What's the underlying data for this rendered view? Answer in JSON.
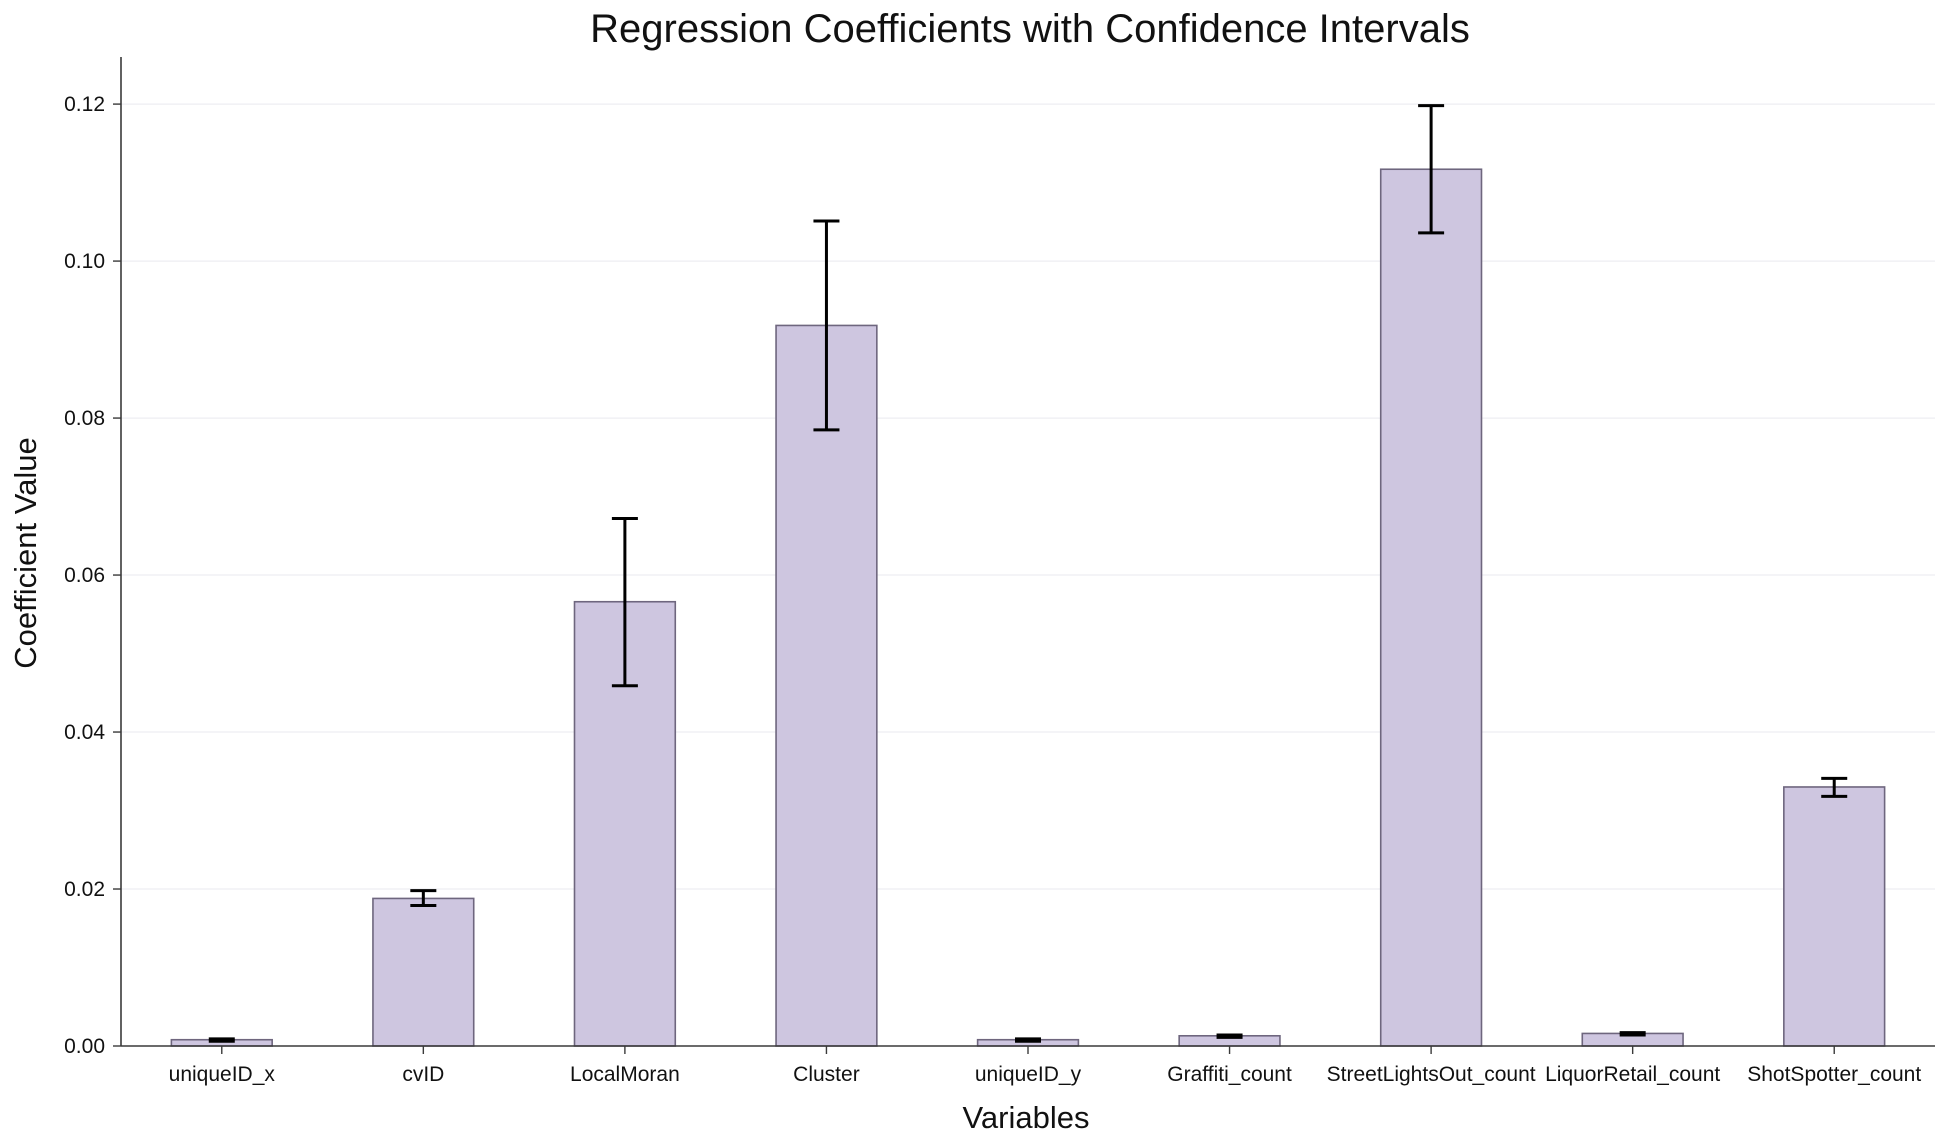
{
  "chart_data": {
    "type": "bar",
    "title": "Regression Coefficients with Confidence Intervals",
    "xlabel": "Variables",
    "ylabel": "Coefficient Value",
    "categories": [
      "uniqueID_x",
      "cvID",
      "LocalMoran",
      "Cluster",
      "uniqueID_y",
      "Graffiti_count",
      "StreetLightsOut_count",
      "LiquorRetail_count",
      "ShotSpotter_count"
    ],
    "values": [
      0.0008,
      0.0188,
      0.0566,
      0.0918,
      0.0008,
      0.0013,
      0.1117,
      0.0016,
      0.033
    ],
    "error_low": [
      0.0006,
      0.0179,
      0.0459,
      0.0785,
      0.0006,
      0.0011,
      0.1036,
      0.0014,
      0.0318
    ],
    "error_high": [
      0.0009,
      0.0198,
      0.0672,
      0.1051,
      0.0009,
      0.0014,
      0.1198,
      0.0017,
      0.0341
    ],
    "ylim": [
      0,
      0.126
    ],
    "yticks": [
      0.0,
      0.02,
      0.04,
      0.06,
      0.08,
      0.1,
      0.12
    ],
    "ytick_labels": [
      "0.00",
      "0.02",
      "0.04",
      "0.06",
      "0.08",
      "0.10",
      "0.12"
    ],
    "grid": true,
    "colors": {
      "bar_fill": "#cec6e0",
      "bar_edge": "#6e667e",
      "error_bar": "#000000"
    }
  }
}
